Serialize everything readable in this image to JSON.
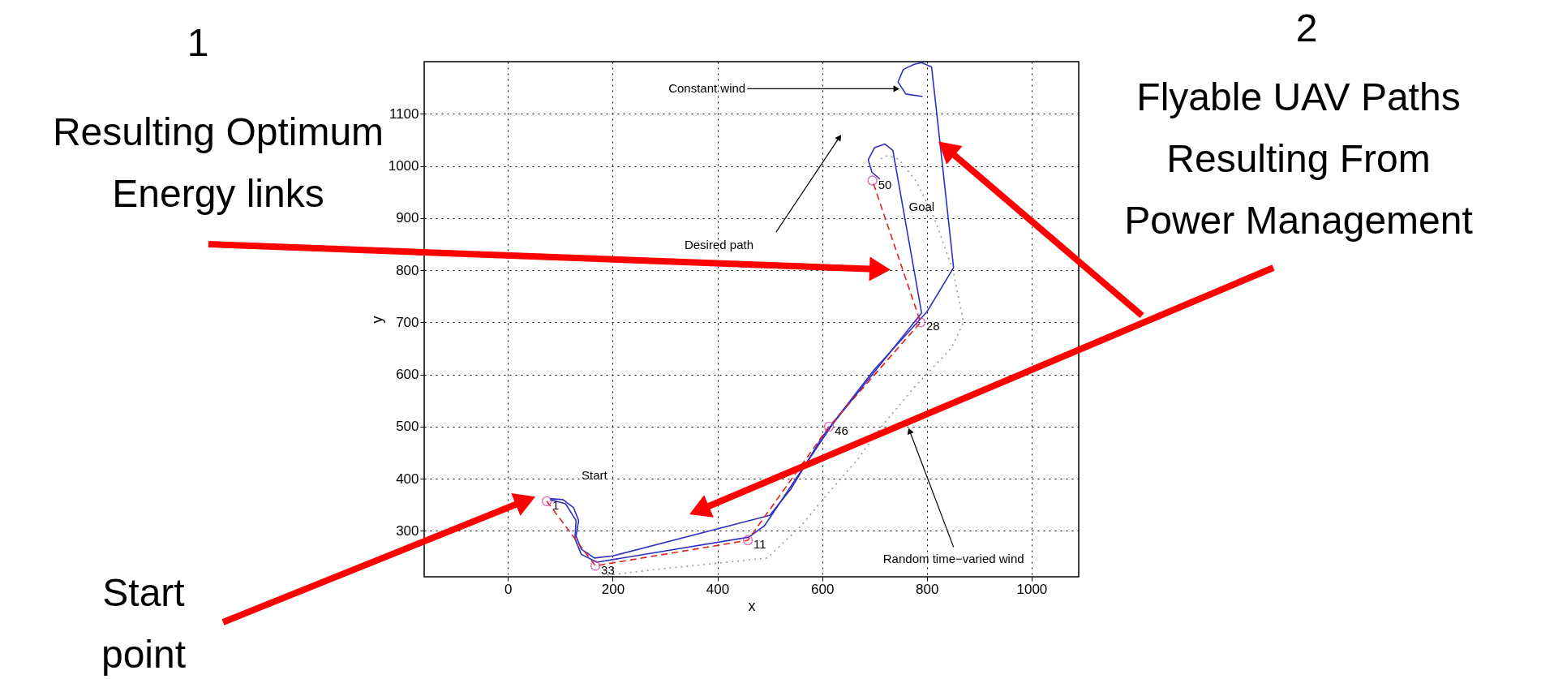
{
  "chart_data": {
    "type": "line",
    "xlabel": "x",
    "ylabel": "y",
    "xlim": [
      -160,
      1090
    ],
    "ylim": [
      212,
      1200
    ],
    "xticks": [
      0,
      200,
      400,
      600,
      800,
      1000
    ],
    "yticks": [
      300,
      400,
      500,
      600,
      700,
      800,
      900,
      1000,
      1100
    ],
    "grid": true,
    "series": [
      {
        "color": "#9a9a9a",
        "line_style": "dotted",
        "marker": "none",
        "x": [
          190,
          300,
          400,
          495,
          560,
          613,
          670,
          713,
          780,
          847,
          870,
          850,
          813,
          780,
          746,
          725,
          705
        ],
        "values": [
          215,
          228,
          238,
          248,
          310,
          374,
          440,
          500,
          580,
          651,
          700,
          800,
          903,
          970,
          1013,
          1020,
          1010
        ]
      },
      {
        "color": "#3030c0",
        "line_style": "solid",
        "marker": "none",
        "x": [
          80,
          105,
          125,
          135,
          130,
          140,
          165,
          200,
          500,
          540,
          600,
          700,
          800,
          851,
          830,
          809,
          790,
          776,
          755,
          745,
          760,
          792
        ],
        "values": [
          362,
          360,
          345,
          320,
          290,
          265,
          248,
          252,
          330,
          380,
          480,
          610,
          720,
          805,
          1000,
          1190,
          1198,
          1195,
          1185,
          1161,
          1138,
          1133
        ]
      },
      {
        "color": "#3030c0",
        "line_style": "solid",
        "marker": "none",
        "x": [
          80,
          110,
          130,
          128,
          140,
          170,
          460,
          490,
          620,
          790,
          738,
          735,
          720,
          700,
          688,
          695,
          710
        ],
        "values": [
          360,
          352,
          320,
          285,
          255,
          240,
          288,
          310,
          505,
          718,
          1013,
          1030,
          1042,
          1035,
          1012,
          988,
          975
        ]
      },
      {
        "color": "#e02020",
        "line_style": "dashed",
        "marker": "circle",
        "x": [
          74,
          167,
          458,
          613,
          788,
          696
        ],
        "values": [
          357,
          233,
          282,
          500,
          700,
          972
        ]
      }
    ],
    "annotations": [
      {
        "text": "1",
        "x": 74,
        "y": 357
      },
      {
        "text": "33",
        "x": 167,
        "y": 233
      },
      {
        "text": "11",
        "x": 458,
        "y": 282
      },
      {
        "text": "46",
        "x": 613,
        "y": 500
      },
      {
        "text": "28",
        "x": 788,
        "y": 700
      },
      {
        "text": "50",
        "x": 696,
        "y": 972
      },
      {
        "text": "Constant wind",
        "x": 748,
        "y": 1148
      },
      "Desired path",
      "Goal",
      "Start",
      "Random time−varied wind",
      "1",
      "Resulting Optimum\nEnergy links",
      "2",
      "Flyable UAV  Paths\nResulting From\nPower Management",
      "Start\npoint"
    ]
  }
}
